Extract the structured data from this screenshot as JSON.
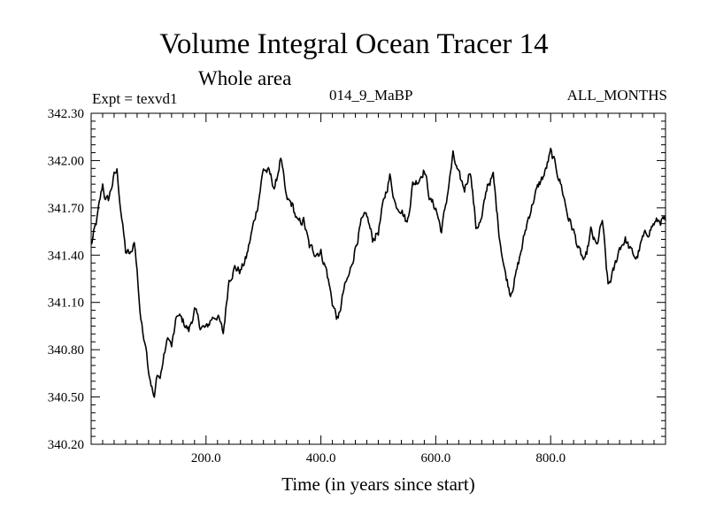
{
  "chart_data": {
    "type": "line",
    "title": "Volume Integral Ocean Tracer 14",
    "subtitle": "Whole area",
    "expt_label": "Expt = texvd1",
    "center_label": "014_9_MaBP",
    "right_label": "ALL_MONTHS",
    "xlabel": "Time (in years since start)",
    "ylabel": "",
    "xlim": [
      0,
      1000
    ],
    "ylim": [
      340.2,
      342.3
    ],
    "xticks": [
      200,
      400,
      600,
      800
    ],
    "xtick_labels": [
      "200.0",
      "400.0",
      "600.0",
      "800.0"
    ],
    "yticks": [
      340.2,
      340.5,
      340.8,
      341.1,
      341.4,
      341.7,
      342.0,
      342.3
    ],
    "ytick_labels": [
      "340.20",
      "340.50",
      "340.80",
      "341.10",
      "341.40",
      "341.70",
      "342.00",
      "342.30"
    ],
    "grid": false,
    "series": [
      {
        "name": "Volume Integral Ocean Tracer 14",
        "color": "#000000",
        "x": [
          0,
          10,
          20,
          25,
          30,
          40,
          45,
          50,
          55,
          60,
          70,
          75,
          80,
          85,
          90,
          95,
          100,
          110,
          115,
          120,
          125,
          130,
          135,
          140,
          150,
          160,
          170,
          180,
          190,
          200,
          210,
          220,
          230,
          240,
          250,
          260,
          270,
          280,
          290,
          300,
          310,
          320,
          330,
          340,
          350,
          360,
          370,
          380,
          390,
          400,
          410,
          420,
          430,
          440,
          450,
          460,
          470,
          480,
          490,
          500,
          510,
          520,
          530,
          540,
          550,
          560,
          570,
          580,
          590,
          600,
          610,
          620,
          630,
          640,
          650,
          660,
          670,
          680,
          690,
          700,
          710,
          720,
          730,
          740,
          750,
          760,
          770,
          780,
          790,
          800,
          810,
          820,
          830,
          840,
          850,
          860,
          870,
          880,
          890,
          900,
          910,
          920,
          930,
          940,
          950,
          960,
          970,
          980,
          990,
          1000
        ],
        "values": [
          341.46,
          341.62,
          341.85,
          341.75,
          341.75,
          341.9,
          341.93,
          341.75,
          341.58,
          341.42,
          341.4,
          341.5,
          341.3,
          341.05,
          340.9,
          340.85,
          340.68,
          340.48,
          340.65,
          340.62,
          340.72,
          340.82,
          340.88,
          340.82,
          341.02,
          340.98,
          340.92,
          341.05,
          340.95,
          340.93,
          341.0,
          341.02,
          340.9,
          341.25,
          341.32,
          341.3,
          341.38,
          341.55,
          341.72,
          341.95,
          341.92,
          341.82,
          342.02,
          341.75,
          341.72,
          341.6,
          341.62,
          341.45,
          341.42,
          341.42,
          341.3,
          341.1,
          340.98,
          341.18,
          341.28,
          341.45,
          341.6,
          341.65,
          341.5,
          341.55,
          341.75,
          341.9,
          341.72,
          341.7,
          341.6,
          341.85,
          341.88,
          341.95,
          341.75,
          341.7,
          341.55,
          341.78,
          342.03,
          341.9,
          341.82,
          341.95,
          341.58,
          341.62,
          341.85,
          341.9,
          341.55,
          341.3,
          341.16,
          341.28,
          341.45,
          341.62,
          341.75,
          341.85,
          341.92,
          342.05,
          341.95,
          341.82,
          341.65,
          341.55,
          341.42,
          341.35,
          341.55,
          341.45,
          341.62,
          341.2,
          341.3,
          341.45,
          341.5,
          341.42,
          341.38,
          341.5,
          341.55,
          341.6,
          341.62,
          341.62
        ]
      }
    ]
  }
}
